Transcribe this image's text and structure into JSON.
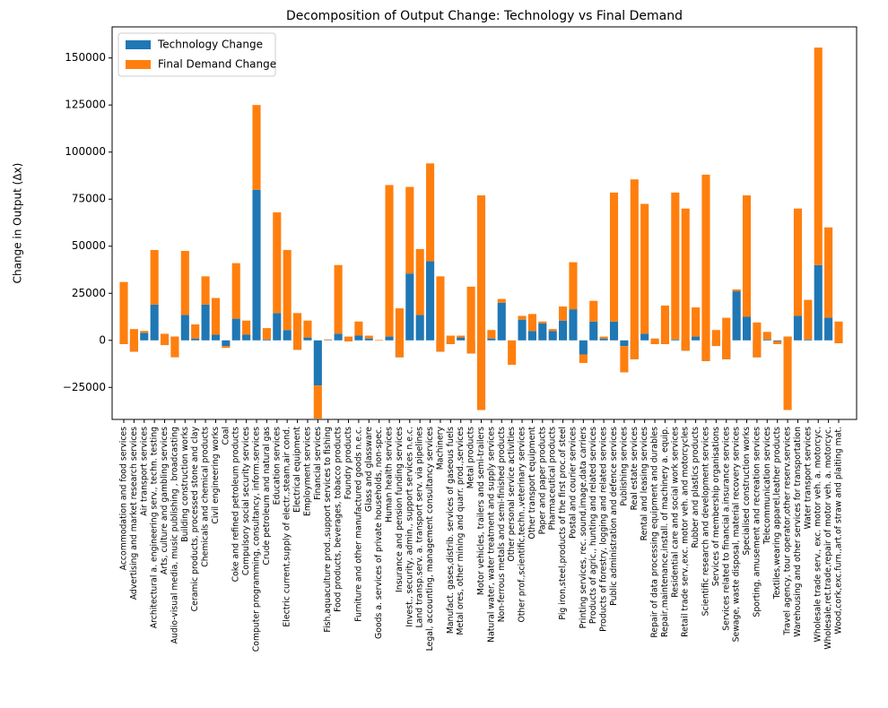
{
  "chart_data": {
    "type": "stacked_bar",
    "title": "Decomposition of Output Change: Technology vs Final Demand",
    "y_label": "Change in Output (Δx)",
    "categories": [
      "Accommodation and food services",
      "Advertising and market research services",
      "Air transport services",
      "Architectural a. engineering serv., techn. testing",
      "Arts, culture and gambling services",
      "Audio-visual media, music publishing , broadcasting",
      "Building construction works",
      "Ceramic products, processed stone and clay",
      "Chemicals and chemical products",
      "Civil engineering works",
      "Coal",
      "Coke and refined petroleum products",
      "Compulsory social security services",
      "Computer programming, consultancy, inform.services",
      "Crude petroleum and natural gas",
      "Education services",
      "Electric current,supply of electr.,steam,air cond.",
      "Electrical equipment",
      "Employment services",
      "Financial services",
      "Fish,aquaculture prod.,support services to fishing",
      "Food products, beverages, tobacco products",
      "Foundry products",
      "Furniture and other manufactured goods n.e.c.",
      "Glass and glassware",
      "Goods a. services of private households, non-spec.",
      "Human health services",
      "Insurance and pension funding services",
      "Invest., security, admin., support services n.e.c.",
      "Land transp.serv. a. transport serv. via pipelines",
      "Legal, accounting, management consultancy services",
      "Machinery",
      "Manufact. gases,distrib. services of gaseous fuels",
      "Metal ores, other mining and quarr. prod.,services",
      "Metal products",
      "Motor vehicles, trailers and semi-trailers",
      "Natural water, water treatment and supply services",
      "Non-ferrous metals and semi-finished products",
      "Other personal service activities",
      "Other prof.,scientific,techn.,veterinary services",
      "Other transport equipment",
      "Paper and paper products",
      "Pharmaceutical products",
      "Pig iron,steel,products of the first proc.of steel",
      "Postal and courier services",
      "Printing services, rec. sound,image,data carriers",
      "Products of agric., hunting and related services",
      "Products of forestry, logging and related services",
      "Public administration and defence services",
      "Publishing services",
      "Real estate services",
      "Rental and leasing services",
      "Repair of data processing equipment and durables",
      "Repair,maintenance,install. of machinery a. equip.",
      "Residential care and social work services",
      "Retail trade serv.,exc. motor veh. and motorcycles",
      "Rubber and plastics products",
      "Scientific research and development services",
      "Services of membership organisations",
      "Services related to financial a.insurance services",
      "Sewage, waste disposal, material recovery services",
      "Specialised construction works",
      "Sporting, amusement and recreation services",
      "Telecommunication services",
      "Textiles,wearing apparel,leather products",
      "Travel agency, tour operator,other reserv.services",
      "Warehousing and other services for transportation",
      "Water transport services",
      "Wholesale trade serv., exc. motor veh. a. motorcyc.",
      "Wholesale,ret.trade,repair of motor veh. a. motorcyc.",
      "Wood,cork,exc.furn.,art.of straw and plaiting mat."
    ],
    "series": [
      {
        "name": "Technology Change",
        "color": "#1f77b4",
        "values": [
          -2000,
          -6000,
          4000,
          19000,
          -2500,
          2000,
          13500,
          1000,
          19000,
          3000,
          -3000,
          11500,
          3000,
          80000,
          500,
          14500,
          5500,
          -5000,
          1500,
          -24000,
          200,
          3500,
          -500,
          2500,
          1000,
          0,
          2000,
          -9000,
          35500,
          13500,
          42000,
          -6000,
          -2000,
          1500,
          -7000,
          -37000,
          1000,
          20000,
          0,
          11000,
          5000,
          9000,
          5000,
          10500,
          16500,
          -7500,
          10000,
          1000,
          10000,
          -3000,
          -10000,
          3500,
          -2000,
          -2000,
          500,
          -5500,
          2000,
          -11000,
          -3000,
          -10000,
          27000,
          12500,
          -9000,
          500,
          -500,
          2000,
          13000,
          500,
          40000,
          12000,
          -1500
        ]
      },
      {
        "name": "Final Demand Change",
        "color": "#ff7f0e",
        "values": [
          33000,
          12000,
          1000,
          29000,
          6000,
          -11000,
          34000,
          7500,
          15000,
          19500,
          -1000,
          29500,
          7500,
          45000,
          6000,
          53500,
          42500,
          19500,
          9000,
          -17500,
          300,
          36500,
          2500,
          7500,
          1500,
          300,
          80500,
          26000,
          46000,
          35000,
          52000,
          40000,
          4500,
          1000,
          35500,
          114000,
          4500,
          2000,
          -13000,
          2000,
          9000,
          1000,
          1000,
          7500,
          25000,
          -4500,
          11000,
          1000,
          68500,
          -14000,
          95500,
          69000,
          3000,
          20500,
          78000,
          75500,
          15500,
          99000,
          8500,
          22000,
          -1000,
          64500,
          18500,
          4000,
          -1500,
          -39000,
          57000,
          21000,
          115500,
          48000,
          11500
        ]
      }
    ],
    "ylim": [
      -42000,
      166500
    ],
    "yticks": [
      {
        "value": -25000,
        "label": "−25000"
      },
      0,
      25000,
      50000,
      75000,
      100000,
      125000,
      150000
    ],
    "legend": "upper left"
  }
}
